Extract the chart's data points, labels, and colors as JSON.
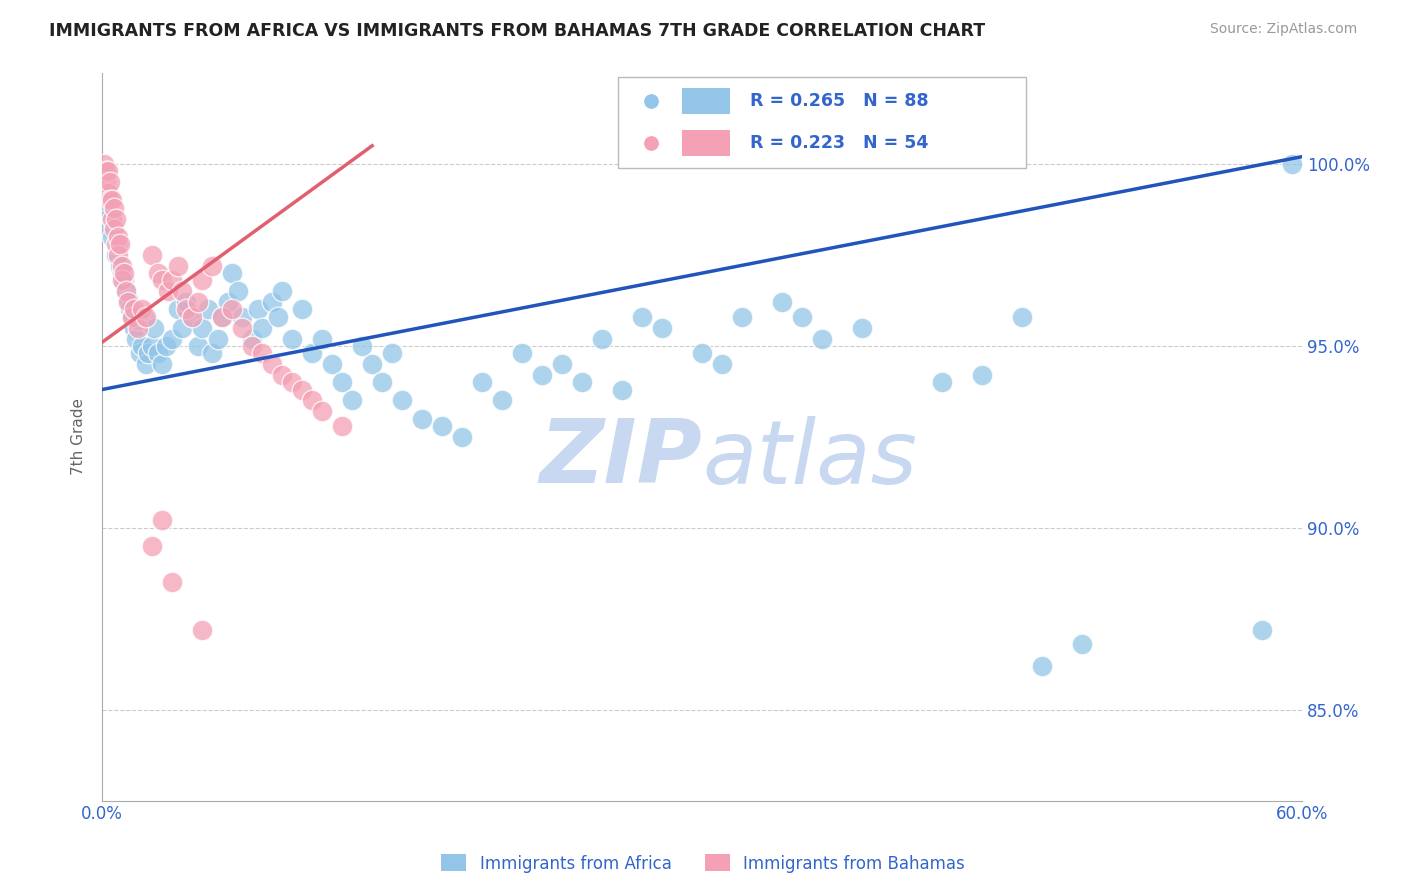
{
  "title": "IMMIGRANTS FROM AFRICA VS IMMIGRANTS FROM BAHAMAS 7TH GRADE CORRELATION CHART",
  "source": "Source: ZipAtlas.com",
  "ylabel": "7th Grade",
  "x_label_africa": "Immigrants from Africa",
  "x_label_bahamas": "Immigrants from Bahamas",
  "xlim": [
    0.0,
    0.6
  ],
  "ylim": [
    0.825,
    1.025
  ],
  "yticks": [
    0.85,
    0.9,
    0.95,
    1.0
  ],
  "ytick_labels": [
    "85.0%",
    "90.0%",
    "95.0%",
    "100.0%"
  ],
  "xticks": [
    0.0,
    0.1,
    0.2,
    0.3,
    0.4,
    0.5,
    0.6
  ],
  "xtick_labels": [
    "0.0%",
    "",
    "",
    "",
    "",
    "",
    "60.0%"
  ],
  "R_africa": 0.265,
  "N_africa": 88,
  "R_bahamas": 0.223,
  "N_bahamas": 54,
  "color_africa": "#92C5E8",
  "color_bahamas": "#F4A0B5",
  "color_line_africa": "#2255BB",
  "color_line_bahamas": "#E06070",
  "color_axis_text": "#3366CC",
  "color_grid": "#CCCCCC",
  "watermark_color": "#C8D8F0",
  "africa_line_x0": 0.0,
  "africa_line_y0": 0.938,
  "africa_line_x1": 0.6,
  "africa_line_y1": 1.002,
  "bahamas_line_x0": 0.0,
  "bahamas_line_y0": 0.951,
  "bahamas_line_x1": 0.135,
  "bahamas_line_y1": 1.005,
  "africa_x": [
    0.002,
    0.003,
    0.003,
    0.004,
    0.005,
    0.006,
    0.007,
    0.008,
    0.009,
    0.01,
    0.011,
    0.012,
    0.013,
    0.014,
    0.015,
    0.016,
    0.017,
    0.018,
    0.019,
    0.02,
    0.021,
    0.022,
    0.023,
    0.025,
    0.026,
    0.028,
    0.03,
    0.032,
    0.035,
    0.038,
    0.04,
    0.042,
    0.045,
    0.048,
    0.05,
    0.053,
    0.055,
    0.058,
    0.06,
    0.063,
    0.065,
    0.068,
    0.07,
    0.075,
    0.078,
    0.08,
    0.085,
    0.088,
    0.09,
    0.095,
    0.1,
    0.105,
    0.11,
    0.115,
    0.12,
    0.125,
    0.13,
    0.135,
    0.14,
    0.145,
    0.15,
    0.16,
    0.17,
    0.18,
    0.19,
    0.2,
    0.21,
    0.22,
    0.23,
    0.24,
    0.25,
    0.26,
    0.27,
    0.28,
    0.3,
    0.31,
    0.32,
    0.34,
    0.35,
    0.36,
    0.38,
    0.42,
    0.44,
    0.46,
    0.47,
    0.49,
    0.58,
    0.595
  ],
  "africa_y": [
    0.99,
    0.988,
    0.985,
    0.982,
    0.98,
    0.983,
    0.975,
    0.978,
    0.972,
    0.97,
    0.968,
    0.965,
    0.963,
    0.96,
    0.958,
    0.955,
    0.952,
    0.957,
    0.948,
    0.95,
    0.958,
    0.945,
    0.948,
    0.95,
    0.955,
    0.948,
    0.945,
    0.95,
    0.952,
    0.96,
    0.955,
    0.962,
    0.958,
    0.95,
    0.955,
    0.96,
    0.948,
    0.952,
    0.958,
    0.962,
    0.97,
    0.965,
    0.958,
    0.952,
    0.96,
    0.955,
    0.962,
    0.958,
    0.965,
    0.952,
    0.96,
    0.948,
    0.952,
    0.945,
    0.94,
    0.935,
    0.95,
    0.945,
    0.94,
    0.948,
    0.935,
    0.93,
    0.928,
    0.925,
    0.94,
    0.935,
    0.948,
    0.942,
    0.945,
    0.94,
    0.952,
    0.938,
    0.958,
    0.955,
    0.948,
    0.945,
    0.958,
    0.962,
    0.958,
    0.952,
    0.955,
    0.94,
    0.942,
    0.958,
    0.862,
    0.868,
    0.872,
    1.0
  ],
  "bahamas_x": [
    0.001,
    0.002,
    0.002,
    0.003,
    0.003,
    0.004,
    0.004,
    0.005,
    0.005,
    0.006,
    0.006,
    0.007,
    0.007,
    0.008,
    0.008,
    0.009,
    0.01,
    0.01,
    0.011,
    0.012,
    0.013,
    0.015,
    0.016,
    0.018,
    0.02,
    0.022,
    0.025,
    0.028,
    0.03,
    0.033,
    0.035,
    0.038,
    0.04,
    0.042,
    0.045,
    0.048,
    0.05,
    0.055,
    0.06,
    0.065,
    0.07,
    0.075,
    0.08,
    0.085,
    0.09,
    0.095,
    0.1,
    0.105,
    0.11,
    0.12,
    0.025,
    0.03,
    0.035,
    0.05
  ],
  "bahamas_y": [
    1.0,
    0.998,
    0.995,
    0.998,
    0.992,
    0.995,
    0.99,
    0.99,
    0.985,
    0.988,
    0.982,
    0.985,
    0.978,
    0.98,
    0.975,
    0.978,
    0.972,
    0.968,
    0.97,
    0.965,
    0.962,
    0.958,
    0.96,
    0.955,
    0.96,
    0.958,
    0.975,
    0.97,
    0.968,
    0.965,
    0.968,
    0.972,
    0.965,
    0.96,
    0.958,
    0.962,
    0.968,
    0.972,
    0.958,
    0.96,
    0.955,
    0.95,
    0.948,
    0.945,
    0.942,
    0.94,
    0.938,
    0.935,
    0.932,
    0.928,
    0.895,
    0.902,
    0.885,
    0.872
  ]
}
